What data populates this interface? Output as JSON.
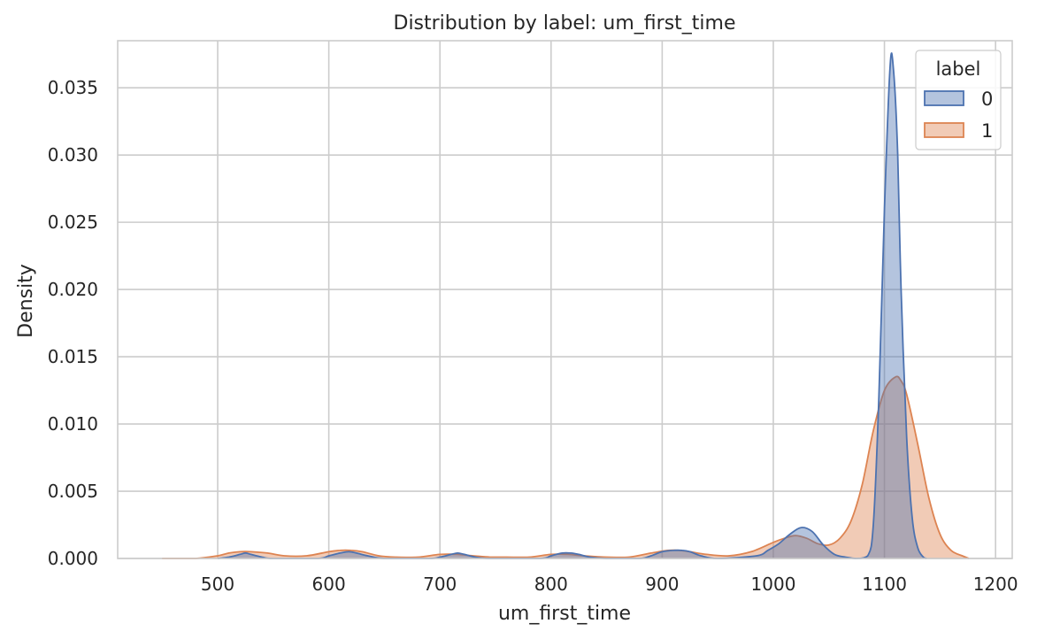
{
  "chart_data": {
    "type": "area",
    "title": "Distribution by label: um_first_time",
    "xlabel": "um_first_time",
    "ylabel": "Density",
    "xlim": [
      410,
      1215
    ],
    "ylim": [
      0,
      0.0385
    ],
    "x_ticks": [
      "500",
      "600",
      "700",
      "800",
      "900",
      "1000",
      "1100",
      "1200"
    ],
    "y_ticks": [
      "0.000",
      "0.005",
      "0.010",
      "0.015",
      "0.020",
      "0.025",
      "0.030",
      "0.035"
    ],
    "grid": true,
    "legend": {
      "title": "label",
      "placement": "top-right"
    },
    "series": [
      {
        "name": "0",
        "color": "#4c72b0",
        "fill": "#4c72b0",
        "x": [
          500,
          510,
          520,
          525,
          530,
          540,
          550,
          590,
          600,
          610,
          618,
          625,
          635,
          650,
          690,
          700,
          710,
          716,
          722,
          732,
          745,
          790,
          800,
          810,
          818,
          825,
          835,
          850,
          880,
          890,
          900,
          910,
          918,
          925,
          935,
          950,
          985,
          995,
          1005,
          1015,
          1025,
          1035,
          1045,
          1055,
          1065,
          1075,
          1085,
          1090,
          1095,
          1100,
          1105,
          1108,
          1112,
          1115,
          1120,
          1125,
          1130,
          1135,
          1138
        ],
        "values": [
          0.0,
          0.0001,
          0.0003,
          0.0004,
          0.0003,
          0.0001,
          0.0,
          0.0,
          0.0002,
          0.0004,
          0.0005,
          0.0004,
          0.0002,
          0.0,
          0.0,
          0.0001,
          0.0003,
          0.0004,
          0.0003,
          0.0001,
          0.0,
          0.0,
          0.0002,
          0.0004,
          0.0004,
          0.0003,
          0.0001,
          0.0,
          0.0,
          0.0002,
          0.0005,
          0.0006,
          0.0006,
          0.0005,
          0.0002,
          0.0,
          0.0002,
          0.0006,
          0.0011,
          0.0018,
          0.0023,
          0.002,
          0.001,
          0.0003,
          0.0001,
          0.0,
          0.0002,
          0.0025,
          0.012,
          0.026,
          0.0365,
          0.0365,
          0.03,
          0.02,
          0.009,
          0.003,
          0.0008,
          0.0001,
          0.0
        ]
      },
      {
        "name": "1",
        "color": "#dd8452",
        "fill": "#dd8452",
        "x": [
          450,
          480,
          500,
          510,
          520,
          530,
          545,
          560,
          580,
          600,
          610,
          620,
          630,
          645,
          660,
          680,
          700,
          715,
          730,
          745,
          760,
          780,
          800,
          815,
          830,
          850,
          870,
          890,
          905,
          915,
          925,
          940,
          960,
          980,
          1000,
          1010,
          1020,
          1030,
          1040,
          1050,
          1060,
          1070,
          1080,
          1090,
          1100,
          1110,
          1115,
          1120,
          1130,
          1140,
          1150,
          1160,
          1170,
          1176
        ],
        "values": [
          0.0,
          0.0,
          0.0002,
          0.0004,
          0.0005,
          0.0005,
          0.0004,
          0.0002,
          0.0002,
          0.0005,
          0.0006,
          0.0006,
          0.0005,
          0.0002,
          0.0001,
          0.0001,
          0.0003,
          0.0003,
          0.0002,
          0.0001,
          0.0001,
          0.0001,
          0.0003,
          0.0003,
          0.0002,
          0.0001,
          0.0001,
          0.0004,
          0.0006,
          0.0006,
          0.0005,
          0.0003,
          0.0002,
          0.0005,
          0.0012,
          0.0015,
          0.0017,
          0.0015,
          0.0011,
          0.001,
          0.0015,
          0.0028,
          0.0055,
          0.0095,
          0.0125,
          0.0135,
          0.0132,
          0.0122,
          0.0085,
          0.0045,
          0.0018,
          0.0006,
          0.0002,
          0.0
        ]
      }
    ]
  }
}
